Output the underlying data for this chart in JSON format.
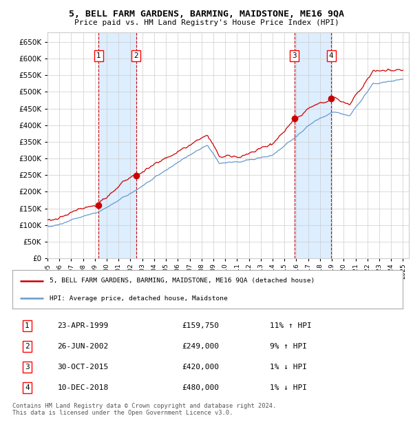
{
  "title1": "5, BELL FARM GARDENS, BARMING, MAIDSTONE, ME16 9QA",
  "title2": "Price paid vs. HM Land Registry's House Price Index (HPI)",
  "legend_line1": "5, BELL FARM GARDENS, BARMING, MAIDSTONE, ME16 9QA (detached house)",
  "legend_line2": "HPI: Average price, detached house, Maidstone",
  "footer": "Contains HM Land Registry data © Crown copyright and database right 2024.\nThis data is licensed under the Open Government Licence v3.0.",
  "sales": [
    {
      "num": 1,
      "date": "23-APR-1999",
      "date_x": 1999.31,
      "price": 159750,
      "pct": "11%",
      "dir": "↑"
    },
    {
      "num": 2,
      "date": "26-JUN-2002",
      "date_x": 2002.49,
      "price": 249000,
      "pct": "9%",
      "dir": "↑"
    },
    {
      "num": 3,
      "date": "30-OCT-2015",
      "date_x": 2015.83,
      "price": 420000,
      "pct": "1%",
      "dir": "↓"
    },
    {
      "num": 4,
      "date": "10-DEC-2018",
      "date_x": 2018.94,
      "price": 480000,
      "pct": "1%",
      "dir": "↓"
    }
  ],
  "xmin": 1995.0,
  "xmax": 2025.5,
  "ymin": 0,
  "ymax": 680000,
  "yticks": [
    0,
    50000,
    100000,
    150000,
    200000,
    250000,
    300000,
    350000,
    400000,
    450000,
    500000,
    550000,
    600000,
    650000
  ],
  "red_line_color": "#cc0000",
  "blue_line_color": "#6699cc",
  "shade_color": "#ddeeff",
  "grid_color": "#cccccc",
  "dot_color": "#cc0000",
  "background_color": "#ffffff",
  "dashed_line_color": "#cc0000"
}
